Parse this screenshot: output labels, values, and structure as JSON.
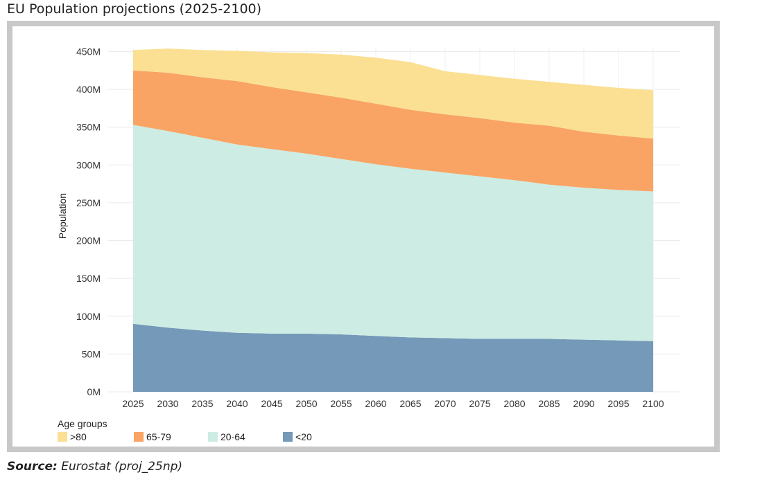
{
  "page": {
    "title": "EU Population projections (2025-2100)",
    "source_label": "Source:",
    "source_text": "Eurostat (proj_25np)"
  },
  "chart_data": {
    "type": "area",
    "stacked": true,
    "title": "",
    "xlabel": "",
    "ylabel": "Population",
    "x": [
      2025,
      2030,
      2035,
      2040,
      2045,
      2050,
      2055,
      2060,
      2065,
      2070,
      2075,
      2080,
      2085,
      2090,
      2095,
      2100
    ],
    "x_tick_labels": [
      "2025",
      "2030",
      "2035",
      "2040",
      "2045",
      "2050",
      "2055",
      "2060",
      "2065",
      "2070",
      "2075",
      "2080",
      "2085",
      "2090",
      "2095",
      "2100"
    ],
    "y_ticks": [
      0,
      50,
      100,
      150,
      200,
      250,
      300,
      350,
      400,
      450
    ],
    "y_tick_labels": [
      "0M",
      "50M",
      "100M",
      "150M",
      "200M",
      "250M",
      "300M",
      "350M",
      "400M",
      "450M"
    ],
    "ylim": [
      0,
      455
    ],
    "y_unit": "M",
    "grid": true,
    "legend_title": "Age groups",
    "legend_position": "bottom-left",
    "series": [
      {
        "name": "<20",
        "color": "#7599b8",
        "values": [
          90,
          85,
          81,
          78,
          77,
          77,
          76,
          74,
          72,
          71,
          70,
          70,
          70,
          69,
          68,
          67
        ]
      },
      {
        "name": "20-64",
        "color": "#cdece4",
        "values": [
          263,
          260,
          255,
          249,
          244,
          238,
          232,
          227,
          223,
          219,
          215,
          210,
          204,
          201,
          199,
          198
        ]
      },
      {
        "name": "65-79",
        "color": "#f9a464",
        "values": [
          72,
          77,
          80,
          84,
          82,
          81,
          81,
          80,
          78,
          77,
          77,
          76,
          78,
          74,
          72,
          70
        ]
      },
      {
        "name": ">80",
        "color": "#fbe094",
        "values": [
          27,
          32,
          36,
          40,
          46,
          52,
          57,
          61,
          63,
          57,
          57,
          58,
          58,
          62,
          63,
          64
        ]
      }
    ],
    "legend_order": [
      ">80",
      "65-79",
      "20-64",
      "<20"
    ]
  }
}
